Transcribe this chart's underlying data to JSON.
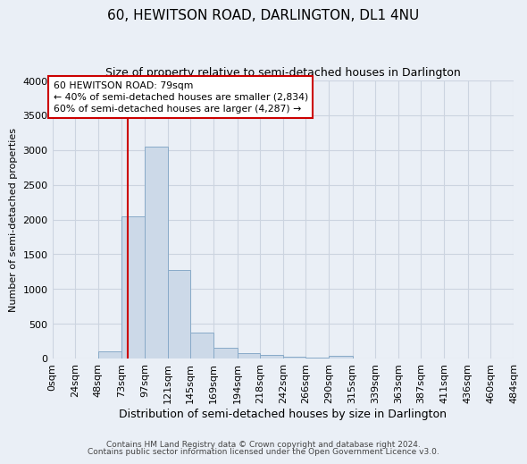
{
  "title": "60, HEWITSON ROAD, DARLINGTON, DL1 4NU",
  "subtitle": "Size of property relative to semi-detached houses in Darlington",
  "xlabel": "Distribution of semi-detached houses by size in Darlington",
  "ylabel": "Number of semi-detached properties",
  "bar_color": "#ccd9e8",
  "bar_edge_color": "#88aac8",
  "bin_labels": [
    "0sqm",
    "24sqm",
    "48sqm",
    "73sqm",
    "97sqm",
    "121sqm",
    "145sqm",
    "169sqm",
    "194sqm",
    "218sqm",
    "242sqm",
    "266sqm",
    "290sqm",
    "315sqm",
    "339sqm",
    "363sqm",
    "387sqm",
    "411sqm",
    "436sqm",
    "460sqm",
    "484sqm"
  ],
  "bar_heights": [
    0,
    0,
    100,
    2050,
    3050,
    1275,
    375,
    150,
    75,
    45,
    30,
    15,
    35,
    0,
    0,
    0,
    0,
    0,
    0,
    0
  ],
  "bin_edges": [
    0,
    24,
    48,
    73,
    97,
    121,
    145,
    169,
    194,
    218,
    242,
    266,
    290,
    315,
    339,
    363,
    387,
    411,
    436,
    460,
    484
  ],
  "property_size": 79,
  "red_line_color": "#cc0000",
  "annotation_text_line1": "60 HEWITSON ROAD: 79sqm",
  "annotation_text_line2": "← 40% of semi-detached houses are smaller (2,834)",
  "annotation_text_line3": "60% of semi-detached houses are larger (4,287) →",
  "annotation_box_color": "#ffffff",
  "annotation_box_edge": "#cc0000",
  "ylim": [
    0,
    4000
  ],
  "yticks": [
    0,
    500,
    1000,
    1500,
    2000,
    2500,
    3000,
    3500,
    4000
  ],
  "grid_color": "#ccd4e0",
  "background_color": "#eaeff6",
  "footer_line1": "Contains HM Land Registry data © Crown copyright and database right 2024.",
  "footer_line2": "Contains public sector information licensed under the Open Government Licence v3.0."
}
